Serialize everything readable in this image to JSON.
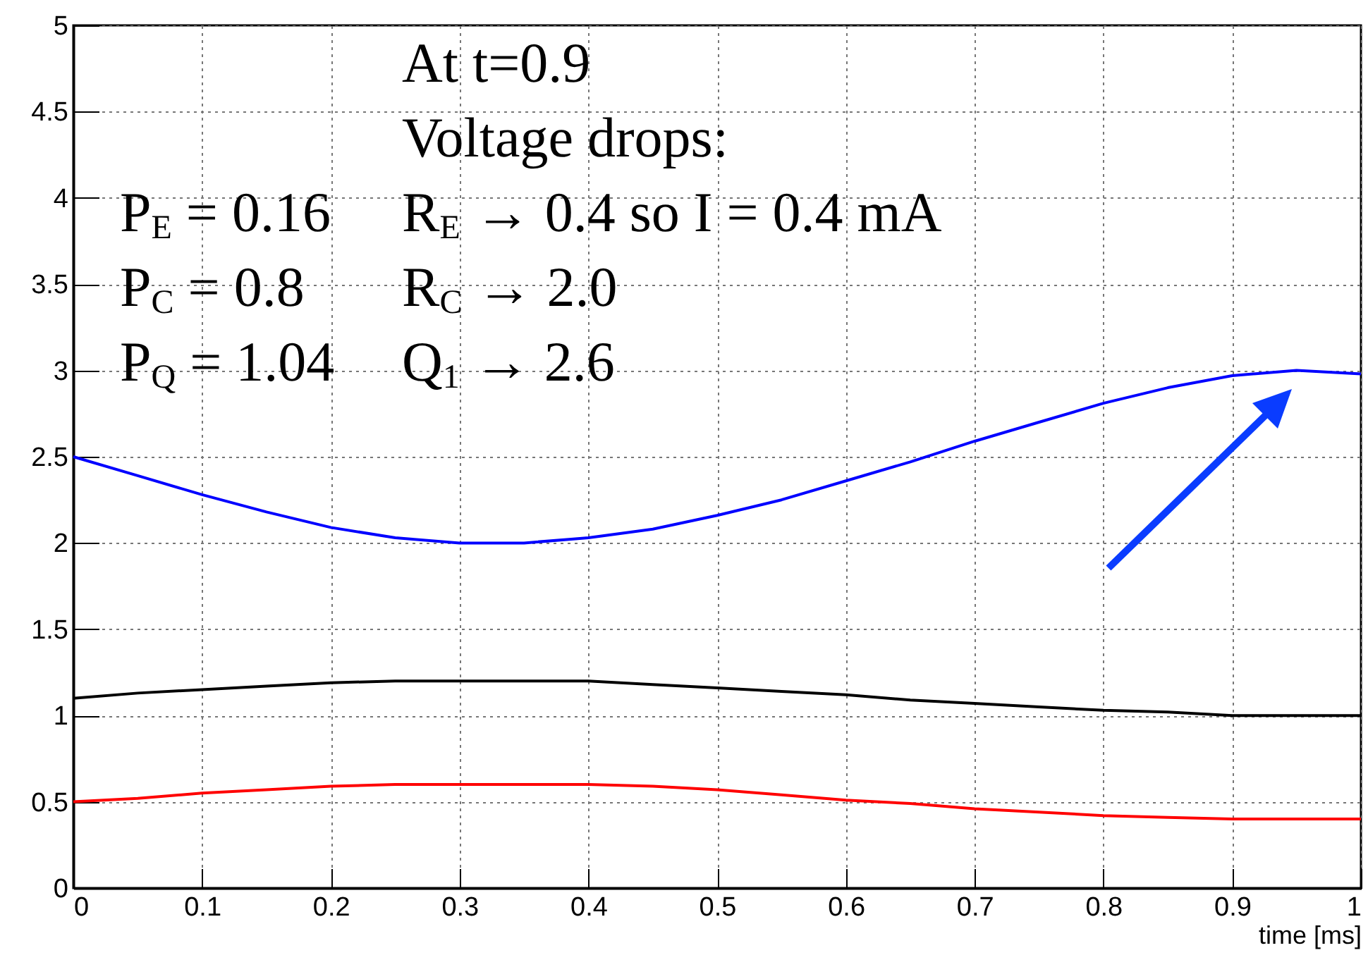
{
  "chart_data": {
    "type": "line",
    "xlabel": "time [ms]",
    "x": [
      0,
      0.05,
      0.1,
      0.15,
      0.2,
      0.25,
      0.3,
      0.35,
      0.4,
      0.45,
      0.5,
      0.55,
      0.6,
      0.65,
      0.7,
      0.75,
      0.8,
      0.85,
      0.9,
      0.95,
      1.0
    ],
    "series": [
      {
        "color": "#0000ff",
        "values": [
          2.5,
          2.39,
          2.28,
          2.18,
          2.09,
          2.03,
          2.0,
          2.0,
          2.03,
          2.08,
          2.16,
          2.25,
          2.36,
          2.47,
          2.59,
          2.7,
          2.81,
          2.9,
          2.97,
          3.0,
          2.98
        ]
      },
      {
        "color": "#000000",
        "values": [
          1.1,
          1.13,
          1.15,
          1.17,
          1.19,
          1.2,
          1.2,
          1.2,
          1.2,
          1.18,
          1.16,
          1.14,
          1.12,
          1.09,
          1.07,
          1.05,
          1.03,
          1.02,
          1.0,
          1.0,
          1.0
        ]
      },
      {
        "color": "#ff0000",
        "values": [
          0.5,
          0.52,
          0.55,
          0.57,
          0.59,
          0.6,
          0.6,
          0.6,
          0.6,
          0.59,
          0.57,
          0.54,
          0.51,
          0.49,
          0.46,
          0.44,
          0.42,
          0.41,
          0.4,
          0.4,
          0.4
        ]
      }
    ],
    "xlim": [
      0,
      1
    ],
    "xticks": [
      0,
      0.1,
      0.2,
      0.3,
      0.4,
      0.5,
      0.6,
      0.7,
      0.8,
      0.9,
      1
    ],
    "ylim": [
      0,
      5
    ],
    "yticks": [
      0,
      0.5,
      1,
      1.5,
      2,
      2.5,
      3,
      3.5,
      4,
      4.5,
      5
    ],
    "grid": true,
    "marker": "none",
    "line_style": "solid",
    "annotations": [
      "At t=0.9",
      "Voltage drops:",
      "P$_{E}$ = 0.16",
      "R$_{E}$ → 0.4 so I = 0.4 mA",
      "P$_{C}$ = 0.8",
      "R$_{C}$ → 2.0",
      "P$_{Q}$ = 1.04",
      "Q$_{1}$ → 2.6"
    ]
  }
}
